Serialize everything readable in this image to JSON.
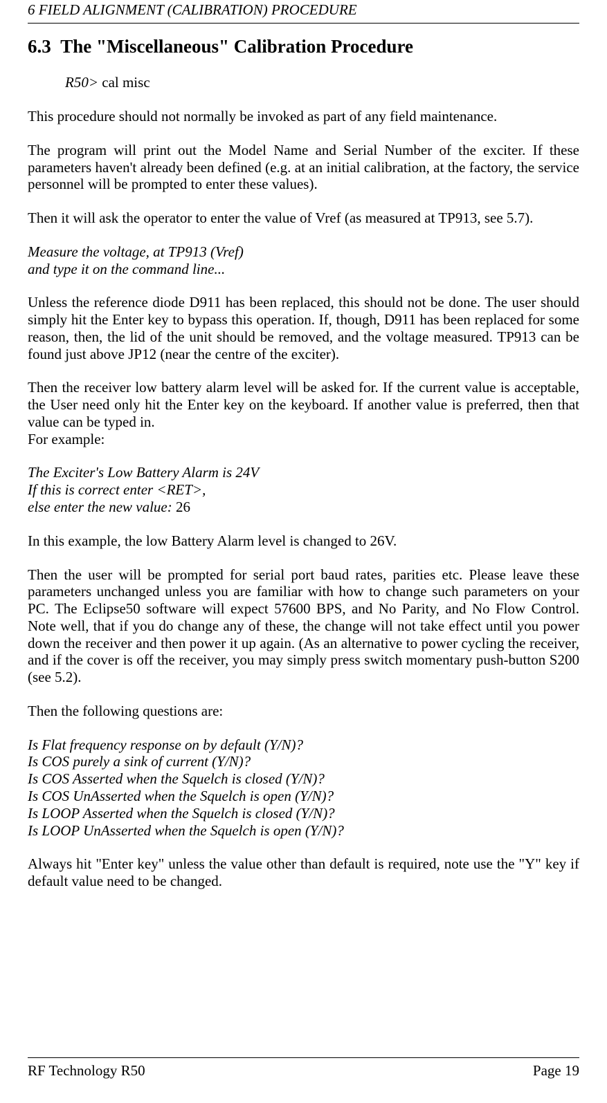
{
  "header": "6  FIELD ALIGNMENT (CALIBRATION) PROCEDURE",
  "section_number": "6.3",
  "section_title": "The \"Miscellaneous\" Calibration Procedure",
  "cmd_prompt": "R50>",
  "cmd_text": " cal misc",
  "para1": "This procedure should not normally be invoked as part of any field maintenance.",
  "para2": "The program will print out the Model Name and Serial Number of the exciter.  If these parameters haven't already been defined (e.g. at an initial calibration, at the factory, the service personnel will be prompted to enter these values).",
  "para3": "Then it will ask the operator to enter the value of Vref (as measured at TP913, see 5.7).",
  "measure_line1": "Measure the voltage, at TP913 (Vref)",
  "measure_line2": "and type it on the command line...",
  "para4": "Unless the reference diode D911 has been replaced, this should not be done.  The user should simply hit the Enter key to bypass this operation.  If, though, D911 has been replaced for some reason, then, the lid of the unit should be removed, and the voltage measured.  TP913 can be found just above JP12 (near the centre of the exciter).",
  "para5": "Then the receiver low battery alarm level will be asked for. If the current value is acceptable, the User need only hit the Enter key on the keyboard. If another value is preferred, then that value can be typed in.",
  "for_example": "For example:",
  "ex_line1": "The Exciter's Low Battery Alarm is 24V",
  "ex_line2": "If this is correct enter <RET>,",
  "ex_line3_italic": "else enter the new value:  ",
  "ex_line3_value": "26",
  "para6": "In this example, the low Battery Alarm level is changed to 26V.",
  "para7": "Then the user will be prompted for serial port baud rates, parities etc.  Please leave these parameters unchanged unless you are familiar with how to change such parameters on your PC.  The Eclipse50 software will expect 57600 BPS, and No Parity, and No Flow Control.  Note well, that if you do change any of these, the change will not take effect until you power down the receiver and then power it up again. (As an alternative to power cycling the receiver, and if the cover is off the receiver, you may simply press switch  momentary push-button S200 (see 5.2).",
  "para8": "Then the following questions are:",
  "q1": "Is Flat frequency response on by default (Y/N)?",
  "q2": "Is COS purely a sink of current (Y/N)?",
  "q3": "Is COS Asserted when the Squelch is closed (Y/N)?",
  "q4": "Is COS UnAsserted when the Squelch is open (Y/N)?",
  "q5": "Is LOOP Asserted when the Squelch is closed (Y/N)?",
  "q6": "Is LOOP UnAsserted when the Squelch is open (Y/N)?",
  "para9": "Always hit \"Enter key\" unless the value other than default is required, note use the \"Y\" key if default value need to be changed.",
  "footer_left": "RF Technology   R50",
  "footer_right": "Page 19"
}
